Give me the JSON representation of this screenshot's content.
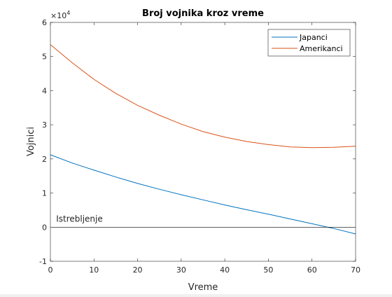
{
  "chart_data": {
    "type": "line",
    "title": "Broj vojnika kroz vreme",
    "xlabel": "Vreme",
    "ylabel": "Vojnici",
    "y_exponent_label": "×10",
    "y_exponent_power": "4",
    "xlim": [
      0,
      70
    ],
    "ylim": [
      -1,
      6
    ],
    "xticks": [
      0,
      10,
      20,
      30,
      40,
      50,
      60,
      70
    ],
    "yticks": [
      -1,
      0,
      1,
      2,
      3,
      4,
      5,
      6
    ],
    "grid": false,
    "legend_location": "top-right",
    "series": [
      {
        "name": "Japanci",
        "color": "#0072BD",
        "x": [
          0,
          5,
          10,
          15,
          20,
          25,
          30,
          35,
          40,
          45,
          50,
          55,
          60,
          65,
          70
        ],
        "y": [
          2.12,
          1.88,
          1.67,
          1.47,
          1.28,
          1.11,
          0.95,
          0.8,
          0.65,
          0.51,
          0.38,
          0.24,
          0.1,
          -0.04,
          -0.2
        ]
      },
      {
        "name": "Amerikanci",
        "color": "#D95319",
        "x": [
          0,
          5,
          10,
          15,
          20,
          25,
          30,
          35,
          40,
          45,
          50,
          55,
          60,
          65,
          70
        ],
        "y": [
          5.35,
          4.82,
          4.33,
          3.92,
          3.57,
          3.28,
          3.02,
          2.8,
          2.64,
          2.51,
          2.42,
          2.35,
          2.33,
          2.34,
          2.37
        ]
      }
    ],
    "reference_line": {
      "y": 0,
      "color": "#000000"
    },
    "annotation": {
      "text": "Istrebljenje",
      "x": 1,
      "y": 0.12
    }
  }
}
